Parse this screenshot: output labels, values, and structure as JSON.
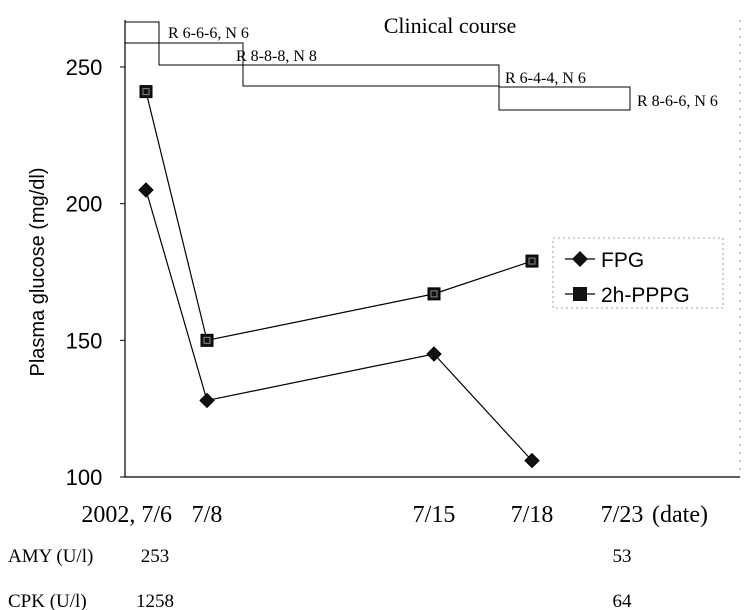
{
  "chart_data": {
    "type": "line",
    "title": "Clinical course",
    "ylabel": "Plasma glucose (mg/dl)",
    "ylim": [
      100,
      260
    ],
    "yticks": [
      100,
      150,
      200,
      250
    ],
    "x": [
      "7/6",
      "7/8",
      "7/15",
      "7/18",
      "7/23"
    ],
    "x_tick_labels": [
      "2002, 7/6",
      "7/8",
      "7/15",
      "7/18",
      "7/23"
    ],
    "xlabel_suffix": "(date)",
    "series": [
      {
        "name": "FPG",
        "marker": "diamond",
        "values": [
          205,
          128,
          145,
          106,
          null
        ]
      },
      {
        "name": "2h-PPPG",
        "marker": "square",
        "values": [
          241,
          150,
          167,
          179,
          null
        ]
      }
    ],
    "legend_position": "right",
    "grid": false,
    "insulin_regimens": [
      {
        "label": "R 6-6-6, N 6",
        "from": "7/6",
        "to": "7/8",
        "level": 262
      },
      {
        "label": "R 8-8-8, N 8",
        "from": "7/8",
        "to": "7/18",
        "level": 248
      },
      {
        "label": "R 6-4-4, N 6",
        "from": "7/18",
        "to": "7/23",
        "level": 240
      },
      {
        "label": "R 8-6-6, N 6",
        "from": "7/23",
        "to": "end",
        "level": 237
      }
    ],
    "lab_table": [
      {
        "label": "AMY (U/l)",
        "values": {
          "7/6": "253",
          "7/23": "53"
        }
      },
      {
        "label": "CPK (U/l)",
        "values": {
          "7/6": "1258",
          "7/23": "64"
        }
      }
    ]
  }
}
